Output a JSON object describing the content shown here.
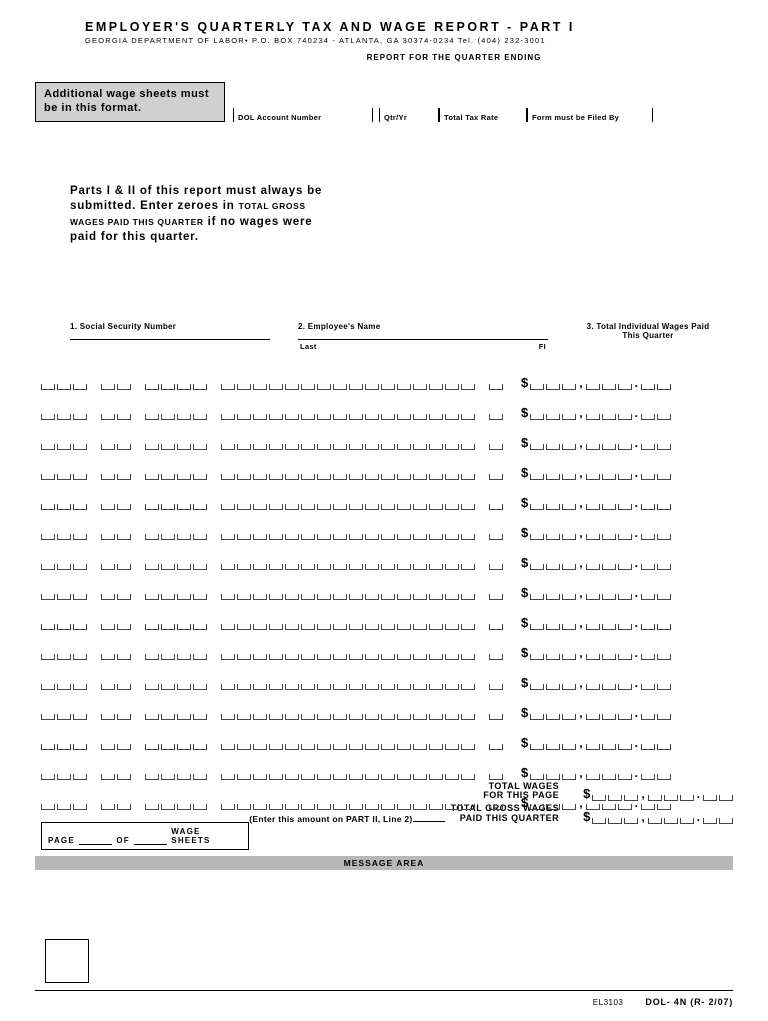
{
  "header": {
    "title": "EMPLOYER'S QUARTERLY TAX AND WAGE REPORT - PART I",
    "subtitle": "GEORGIA DEPARTMENT OF LABOR• P.O. BOX 740234 - ATLANTA, GA 30374-0234  Tel. (404) 232-3001",
    "report_for": "REPORT FOR THE QUARTER ENDING",
    "notice": "Additional wage sheets must be in this format.",
    "fields": {
      "dol_account": "DOL Account Number",
      "qtr_yr": "Qtr/Yr",
      "total_tax_rate": "Total Tax Rate",
      "filed_by": "Form must be Filed By"
    }
  },
  "instructions": {
    "line1": "Parts I & II of this report must always be submitted. Enter zeroes in",
    "smallcaps": "TOTAL GROSS WAGES PAID THIS QUARTER",
    "line2": "if no wages were paid for this quarter."
  },
  "columns": {
    "c1": "1. Social Security Number",
    "c2": "2. Employee's Name",
    "c2_last": "Last",
    "c2_fi": "FI",
    "c3": "3. Total Individual Wages Paid This Quarter"
  },
  "rows_count": 15,
  "page_box": {
    "page": "PAGE",
    "of": "OF",
    "sheets": "WAGE SHEETS"
  },
  "totals": {
    "total_wages": "TOTAL WAGES",
    "for_page": "FOR THIS PAGE",
    "gross1": "TOTAL GROSS WAGES",
    "gross2": "PAID THIS QUARTER",
    "enter_note": "(Enter this amount on PART II, Line 2)"
  },
  "message_area": "MESSAGE AREA",
  "footer": {
    "code": "EL3103",
    "form": "DOL- 4N (R- 2/07)"
  }
}
